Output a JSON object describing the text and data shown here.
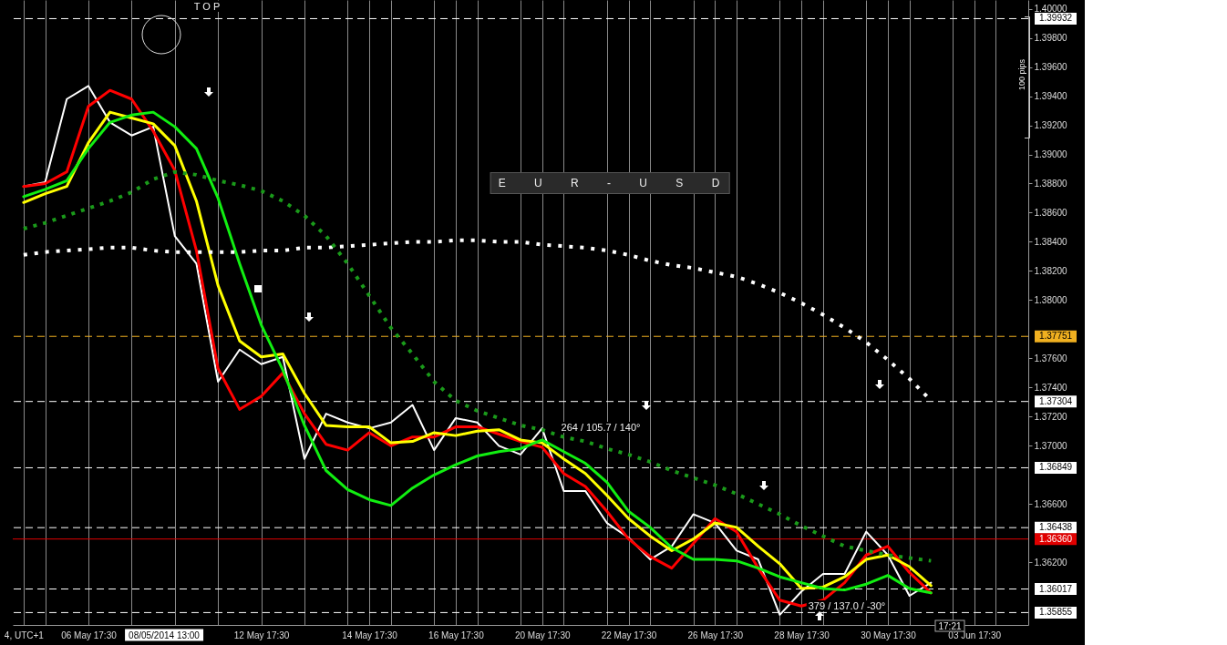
{
  "chart_data": {
    "type": "line",
    "categories": [
      "4, UTC+1",
      null,
      null,
      "06 May 17:30",
      null,
      null,
      null,
      null,
      null,
      null,
      null,
      "12 May 17:30",
      null,
      null,
      null,
      null,
      "14 May 17:30",
      null,
      null,
      null,
      "16 May 17:30",
      null,
      null,
      null,
      "20 May 17:30",
      null,
      null,
      null,
      "22 May 17:30",
      null,
      null,
      null,
      "26 May 17:30",
      null,
      null,
      null,
      "28 May 17:30",
      null,
      null,
      null,
      "30 May 17:30",
      null,
      null,
      null,
      "03 Jun 17:30",
      null,
      null
    ],
    "series": [
      {
        "color": "#ffffff",
        "values": [
          1.3878,
          1.3881,
          1.3938,
          1.3947,
          1.3922,
          1.3913,
          1.3919,
          1.3844,
          1.3825,
          1.3744,
          1.3766,
          1.3756,
          1.3761,
          1.3691,
          1.3722,
          1.3716,
          1.3712,
          1.3716,
          1.3728,
          1.3697,
          1.3719,
          1.3716,
          1.37,
          1.3694,
          1.3712,
          1.3669,
          1.3669,
          1.3647,
          1.3637,
          1.3622,
          1.3631,
          1.3653,
          1.3647,
          1.3628,
          1.3622,
          1.3584,
          1.36,
          1.3612,
          1.3612,
          1.3641,
          1.3625,
          1.3597,
          1.3606,
          null,
          null,
          null,
          null
        ]
      },
      {
        "color": "#ff0000",
        "values": [
          1.3878,
          1.388,
          1.3888,
          1.3933,
          1.3944,
          1.3938,
          1.3916,
          1.3889,
          1.3834,
          1.3753,
          1.3725,
          1.3734,
          1.375,
          1.3722,
          1.3701,
          1.3697,
          1.3709,
          1.37,
          1.3706,
          1.3706,
          1.3713,
          1.3713,
          1.3708,
          1.3703,
          1.3699,
          1.3681,
          1.3672,
          1.3655,
          1.3636,
          1.3624,
          1.3616,
          1.3633,
          1.365,
          1.3641,
          1.3616,
          1.3594,
          1.359,
          1.3594,
          1.3606,
          1.3625,
          1.3631,
          1.3613,
          1.3599,
          null,
          null,
          null,
          null
        ]
      },
      {
        "color": "#ffff00",
        "values": [
          1.3867,
          1.3873,
          1.3878,
          1.3908,
          1.3929,
          1.3925,
          1.3921,
          1.3906,
          1.3868,
          1.381,
          1.3772,
          1.3761,
          1.3763,
          1.3736,
          1.3714,
          1.3713,
          1.3713,
          1.3702,
          1.3703,
          1.3709,
          1.3707,
          1.371,
          1.3711,
          1.3704,
          1.3702,
          1.3691,
          1.3681,
          1.3666,
          1.365,
          1.3638,
          1.3628,
          1.3636,
          1.3647,
          1.3644,
          1.3631,
          1.3619,
          1.3602,
          1.3603,
          1.361,
          1.3622,
          1.3625,
          1.3617,
          1.3604,
          null,
          null,
          null,
          null
        ]
      },
      {
        "color": "#11ee11",
        "values": [
          1.3871,
          1.3876,
          1.3882,
          1.3904,
          1.3922,
          1.3927,
          1.3929,
          1.3919,
          1.3904,
          1.387,
          1.3825,
          1.3783,
          1.3752,
          1.3714,
          1.3683,
          1.367,
          1.3663,
          1.3659,
          1.3671,
          1.368,
          1.3687,
          1.3693,
          1.3696,
          1.3698,
          1.3704,
          1.3696,
          1.3688,
          1.3675,
          1.3655,
          1.3644,
          1.363,
          1.3622,
          1.3622,
          1.3621,
          1.3616,
          1.361,
          1.3606,
          1.3602,
          1.3601,
          1.3605,
          1.3611,
          1.3602,
          1.3599,
          null,
          null,
          null,
          null
        ]
      },
      {
        "color": "#ffffff",
        "line_style": "dotted",
        "values": [
          1.3831,
          1.3833,
          1.3834,
          1.3835,
          1.3836,
          1.3836,
          1.3834,
          1.3833,
          1.3833,
          1.3833,
          1.3833,
          1.3834,
          1.3834,
          1.3836,
          1.3836,
          1.3837,
          1.3838,
          1.3839,
          1.384,
          1.384,
          1.3841,
          1.3841,
          1.384,
          1.384,
          1.3838,
          1.3837,
          1.3836,
          1.3834,
          1.3831,
          1.3827,
          1.3824,
          1.3822,
          1.3819,
          1.3816,
          1.3811,
          1.3805,
          1.3798,
          1.379,
          1.3781,
          1.3771,
          1.3759,
          1.3746,
          1.3731,
          null,
          null,
          null,
          null
        ]
      },
      {
        "color": "#1a9a1a",
        "line_style": "dotted",
        "values": [
          1.3849,
          1.3853,
          1.3858,
          1.3863,
          1.3868,
          1.3874,
          1.3883,
          1.3888,
          1.3886,
          1.3882,
          1.3879,
          1.3875,
          1.3868,
          1.3858,
          1.3844,
          1.3825,
          1.3803,
          1.3781,
          1.3763,
          1.3744,
          1.3731,
          1.3724,
          1.3719,
          1.3714,
          1.3711,
          1.3706,
          1.3703,
          1.3698,
          1.3694,
          1.3689,
          1.3683,
          1.3678,
          1.3673,
          1.3667,
          1.366,
          1.3653,
          1.3645,
          1.3638,
          1.3631,
          1.3628,
          1.3625,
          1.3623,
          1.3621,
          null,
          null,
          null,
          null
        ]
      }
    ],
    "ylim": [
      1.3577,
      1.4006
    ],
    "yticks": [
      {
        "value": 1.362,
        "label": "1.36200"
      },
      {
        "value": 1.366,
        "label": "1.36600"
      },
      {
        "value": 1.37,
        "label": "1.37000"
      },
      {
        "value": 1.372,
        "label": "1.37200"
      },
      {
        "value": 1.374,
        "label": "1.37400"
      },
      {
        "value": 1.376,
        "label": "1.37600"
      },
      {
        "value": 1.38,
        "label": "1.38000"
      },
      {
        "value": 1.382,
        "label": "1.38200"
      },
      {
        "value": 1.384,
        "label": "1.38400"
      },
      {
        "value": 1.386,
        "label": "1.38600"
      },
      {
        "value": 1.388,
        "label": "1.38800"
      },
      {
        "value": 1.39,
        "label": "1.39000"
      },
      {
        "value": 1.392,
        "label": "1.39200"
      },
      {
        "value": 1.394,
        "label": "1.39400"
      },
      {
        "value": 1.396,
        "label": "1.39600"
      },
      {
        "value": 1.398,
        "label": "1.39800"
      },
      {
        "value": 1.4,
        "label": "1.40000"
      }
    ],
    "ref_lines": [
      {
        "axis": "y",
        "value": 1.39932,
        "label": "1.39932",
        "color": "#ffffff",
        "line_style": "dashed"
      },
      {
        "axis": "y",
        "value": 1.37751,
        "label": "1.37751",
        "color": "#f0b020",
        "line_style": "dashed"
      },
      {
        "axis": "y",
        "value": 1.37304,
        "label": "1.37304",
        "color": "#ffffff",
        "line_style": "dashed"
      },
      {
        "axis": "y",
        "value": 1.36849,
        "label": "1.36849",
        "color": "#ffffff",
        "line_style": "dashed"
      },
      {
        "axis": "y",
        "value": 1.36438,
        "label": "1.36438",
        "color": "#ffffff",
        "line_style": "dashed"
      },
      {
        "axis": "y",
        "value": 1.3636,
        "label": "1.36360",
        "color": "#e00000",
        "line_style": "solid"
      },
      {
        "axis": "y",
        "value": 1.36017,
        "label": "1.36017",
        "color": "#ffffff",
        "line_style": "dashed"
      },
      {
        "axis": "y",
        "value": 1.35855,
        "label": "1.35855",
        "color": "#ffffff",
        "line_style": "dashed"
      }
    ],
    "annotations": [
      "T O P",
      "E U R - U S D",
      "264 / 105.7 / 140°",
      "379 / 137.0 / -30°",
      "100 pips",
      "08/05/2014 13:00",
      "17:21"
    ],
    "grid": "x"
  }
}
